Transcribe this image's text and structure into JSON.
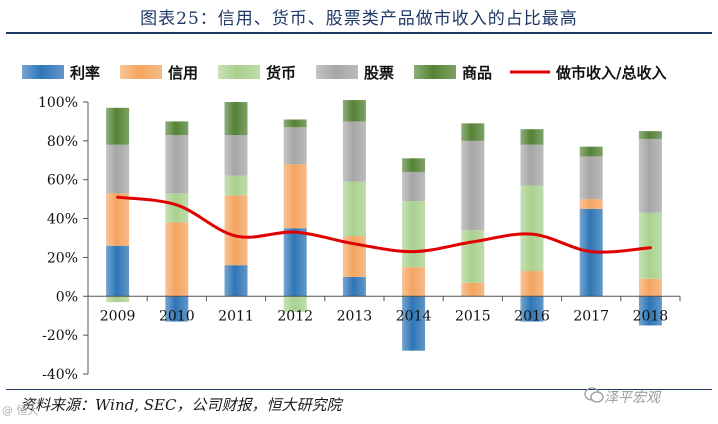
{
  "chart_data": {
    "type": "bar",
    "subtype": "stacked-bar-with-line",
    "title": "图表25：信用、货币、股票类产品做市收入的占比最高",
    "categories": [
      "2009",
      "2010",
      "2011",
      "2012",
      "2013",
      "2014",
      "2015",
      "2016",
      "2017",
      "2018"
    ],
    "series": [
      {
        "name": "利率",
        "color": "#2e75b6",
        "values": [
          26,
          -13,
          16,
          35,
          10,
          -28,
          0,
          -13,
          45,
          -15
        ]
      },
      {
        "name": "信用",
        "color": "#f4a460",
        "values": [
          27,
          38,
          36,
          33,
          21,
          15,
          7,
          13,
          5,
          9
        ]
      },
      {
        "name": "货币",
        "color": "#a9d18e",
        "values": [
          -3,
          15,
          10,
          -8,
          28,
          34,
          27,
          44,
          0,
          34
        ]
      },
      {
        "name": "股票",
        "color": "#a6a6a6",
        "values": [
          25,
          30,
          21,
          19,
          31,
          15,
          46,
          21,
          22,
          38
        ]
      },
      {
        "name": "商品",
        "color": "#548235",
        "values": [
          19,
          7,
          17,
          4,
          11,
          7,
          9,
          8,
          5,
          4
        ]
      }
    ],
    "line": {
      "name": "做市收入/总收入",
      "color": "#e00000",
      "values": [
        51,
        47,
        31,
        33,
        27,
        23,
        28,
        32,
        23,
        25
      ]
    },
    "ylim": [
      -40,
      100
    ],
    "yticks": [
      -40,
      -20,
      0,
      20,
      40,
      60,
      80,
      100
    ],
    "ytick_labels": [
      "-40%",
      "-20%",
      "0%",
      "20%",
      "40%",
      "60%",
      "80%",
      "100%"
    ],
    "legend_position": "top",
    "source": "资料来源：Wind, SEC，公司财报，恒大研究院",
    "watermark": "泽平宏观",
    "stamp": "@ 恒大"
  }
}
